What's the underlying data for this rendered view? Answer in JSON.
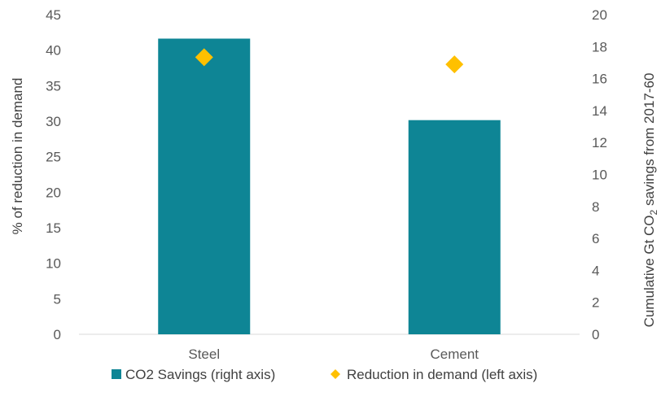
{
  "chart_data": {
    "type": "bar",
    "categories": [
      "Steel",
      "Cement"
    ],
    "series": [
      {
        "name": "CO2 Savings (right axis)",
        "kind": "bar",
        "axis": "right",
        "color": "#0e8595",
        "values": [
          18.5,
          13.4
        ]
      },
      {
        "name": "Reduction in demand (left axis)",
        "kind": "marker",
        "marker": "diamond",
        "axis": "left",
        "color": "#ffc000",
        "values": [
          39,
          38
        ]
      }
    ],
    "left_axis": {
      "title": "% of reduction  in demand",
      "ylim": [
        0,
        45
      ],
      "ticks": [
        "0",
        "5",
        "10",
        "15",
        "20",
        "25",
        "30",
        "35",
        "40",
        "45"
      ]
    },
    "right_axis": {
      "title_main": "Cumulative  Gt CO",
      "title_sub": "2",
      "title_rest": " savings from  2017-60",
      "ylim": [
        0,
        20
      ],
      "ticks": [
        "0",
        "2",
        "4",
        "6",
        "8",
        "10",
        "12",
        "14",
        "16",
        "18",
        "20"
      ]
    },
    "grid": false,
    "legend_position": "bottom"
  }
}
